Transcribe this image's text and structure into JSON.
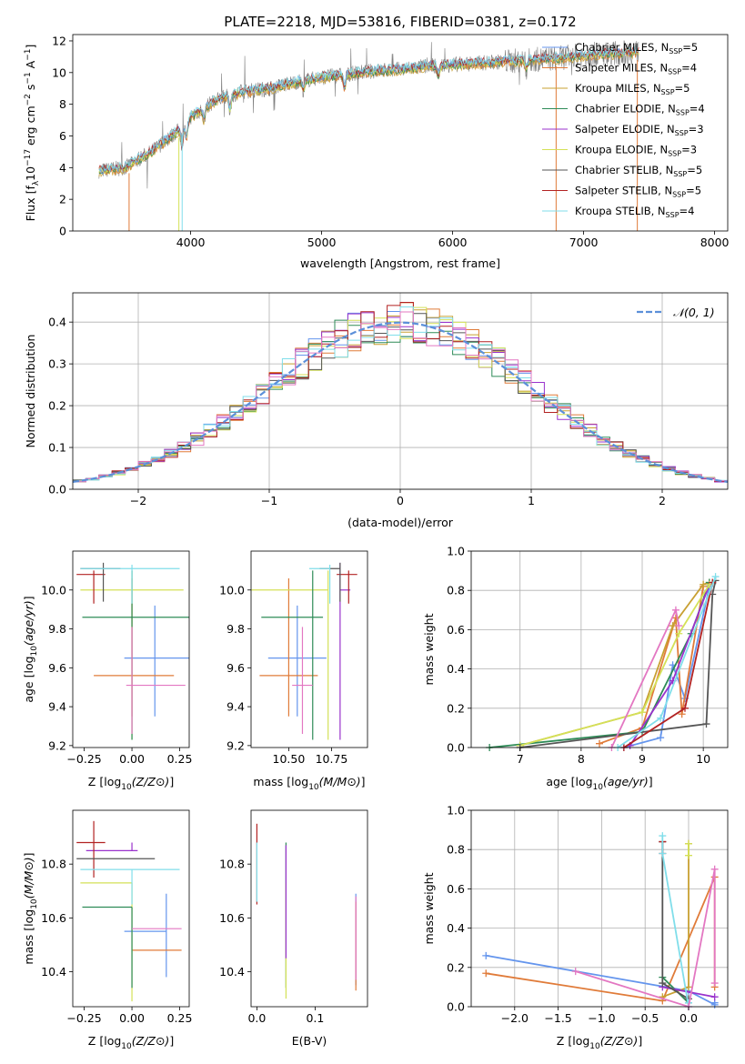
{
  "colors": {
    "chabrier_miles": "#6495ed",
    "salpeter_miles": "#e07b39",
    "kroupa_miles": "#c8a032",
    "chabrier_elodie": "#2e8b57",
    "salpeter_elodie": "#9932cc",
    "kroupa_elodie": "#d4e157",
    "chabrier_stelib": "#555555",
    "salpeter_stelib": "#b22222",
    "kroupa_stelib": "#80deea",
    "pink": "#e377c2",
    "spectrum": "#808080",
    "normal_curve": "#5b8fd9"
  },
  "chart_data": [
    {
      "id": "spectrum",
      "type": "line",
      "title": "PLATE=2218, MJD=53816, FIBERID=0381, z=0.172",
      "xlabel": "wavelength [Angstrom, rest frame]",
      "ylabel_parts": [
        "Flux [f",
        "λ",
        "10",
        "−17",
        " erg cm",
        "−2",
        " s",
        "−1",
        " A",
        "−1",
        "]"
      ],
      "xlim": [
        3100,
        8100
      ],
      "ylim": [
        0,
        12.4
      ],
      "xticks": [
        "4000",
        "5000",
        "6000",
        "7000",
        "8000"
      ],
      "yticks": [
        "0",
        "2",
        "4",
        "6",
        "8",
        "10",
        "12"
      ],
      "spectrum_envelope": {
        "x": [
          3300,
          3500,
          3700,
          3900,
          4000,
          4200,
          4400,
          4600,
          4800,
          5000,
          5200,
          5400,
          5600,
          5800,
          6000,
          6200,
          6400,
          6600,
          6800,
          7000,
          7200,
          7400
        ],
        "y": [
          3.8,
          4.0,
          5.0,
          6.3,
          7.2,
          8.3,
          8.8,
          9.0,
          9.4,
          9.7,
          9.9,
          10.1,
          10.2,
          10.4,
          10.5,
          10.6,
          10.7,
          10.8,
          10.9,
          11.1,
          11.2,
          11.3
        ]
      },
      "legend": [
        {
          "label": "Chabrier MILES, N",
          "sub": "SSP",
          "suffix": "=5",
          "color_key": "chabrier_miles"
        },
        {
          "label": "Salpeter MILES, N",
          "sub": "SSP",
          "suffix": "=4",
          "color_key": "salpeter_miles"
        },
        {
          "label": "Kroupa MILES, N",
          "sub": "SSP",
          "suffix": "=5",
          "color_key": "kroupa_miles"
        },
        {
          "label": "Chabrier ELODIE, N",
          "sub": "SSP",
          "suffix": "=4",
          "color_key": "chabrier_elodie"
        },
        {
          "label": "Salpeter ELODIE, N",
          "sub": "SSP",
          "suffix": "=3",
          "color_key": "salpeter_elodie"
        },
        {
          "label": "Kroupa ELODIE, N",
          "sub": "SSP",
          "suffix": "=3",
          "color_key": "kroupa_elodie"
        },
        {
          "label": "Chabrier STELIB, N",
          "sub": "SSP",
          "suffix": "=5",
          "color_key": "chabrier_stelib"
        },
        {
          "label": "Salpeter STELIB, N",
          "sub": "SSP",
          "suffix": "=5",
          "color_key": "salpeter_stelib"
        },
        {
          "label": "Kroupa STELIB, N",
          "sub": "SSP",
          "suffix": "=4",
          "color_key": "kroupa_stelib"
        }
      ]
    },
    {
      "id": "residuals",
      "type": "bar",
      "xlabel": "(data-model)/error",
      "ylabel": "Normed distribution",
      "xlim": [
        -2.5,
        2.5
      ],
      "ylim": [
        0,
        0.47
      ],
      "xticks": [
        "−2",
        "−1",
        "0",
        "1",
        "2"
      ],
      "yticks": [
        "0.0",
        "0.1",
        "0.2",
        "0.3",
        "0.4"
      ],
      "grid": true,
      "legend": "𝒩(0, 1)",
      "legend_position": "top-right",
      "bin_width": 0.1,
      "distribution": "normal(0,1)"
    },
    {
      "id": "z_age",
      "type": "scatter",
      "xlabel": "Z [log10(Z/Z⊙)]",
      "ylabel": "age  [log10(age/yr)]",
      "xlim": [
        -0.31,
        0.3
      ],
      "ylim": [
        9.19,
        10.2
      ],
      "xticks": [
        "−0.25",
        "0.00",
        "0.25"
      ],
      "yticks": [
        "9.2",
        "9.4",
        "9.6",
        "9.8",
        "10.0"
      ],
      "points": [
        {
          "x": 0.12,
          "y": 9.65,
          "xerr": [
            0.16,
            0.2
          ],
          "yerr": [
            0.3,
            0.27
          ],
          "color_key": "chabrier_miles"
        },
        {
          "x": 0.0,
          "y": 9.56,
          "xerr": [
            0.2,
            0.22
          ],
          "yerr": [
            0.21,
            0.5
          ],
          "color_key": "salpeter_miles"
        },
        {
          "x": 0.0,
          "y": 10.0,
          "xerr": [
            0.27,
            0.27
          ],
          "yerr": [
            0.77,
            0.1
          ],
          "color_key": "kroupa_elodie"
        },
        {
          "x": 0.0,
          "y": 9.86,
          "xerr": [
            0.26,
            0.3
          ],
          "yerr": [
            0.63,
            0.24
          ],
          "color_key": "chabrier_elodie"
        },
        {
          "x": 0.0,
          "y": 9.51,
          "xerr": [
            0.03,
            0.28
          ],
          "yerr": [
            0.25,
            0.3
          ],
          "color_key": "pink"
        },
        {
          "x": -0.2,
          "y": 10.08,
          "xerr": [
            0.09,
            0.06
          ],
          "yerr": [
            0.15,
            0.02
          ],
          "color_key": "salpeter_stelib"
        },
        {
          "x": -0.15,
          "y": 10.11,
          "xerr": [
            0.12,
            0.09
          ],
          "yerr": [
            0.17,
            0.03
          ],
          "color_key": "chabrier_stelib"
        },
        {
          "x": 0.0,
          "y": 10.11,
          "xerr": [
            0.27,
            0.25
          ],
          "yerr": [
            0.18,
            0.02
          ],
          "color_key": "kroupa_stelib"
        }
      ]
    },
    {
      "id": "mass_age",
      "type": "scatter",
      "xlabel": "mass [log10(M/M⊙)]",
      "xlim": [
        10.28,
        10.96
      ],
      "ylim": [
        9.19,
        10.2
      ],
      "xticks": [
        "10.50",
        "10.75"
      ],
      "yticks": [
        "9.2",
        "9.4",
        "9.6",
        "9.8",
        "10.0"
      ],
      "points": [
        {
          "x": 10.55,
          "y": 9.65,
          "xerr": [
            0.17,
            0.17
          ],
          "yerr": [
            0.3,
            0.27
          ],
          "color_key": "chabrier_miles"
        },
        {
          "x": 10.5,
          "y": 9.56,
          "xerr": [
            0.17,
            0.17
          ],
          "yerr": [
            0.21,
            0.5
          ],
          "color_key": "salpeter_miles"
        },
        {
          "x": 10.73,
          "y": 10.0,
          "xerr": [
            0.5,
            0.0
          ],
          "yerr": [
            0.77,
            0.1
          ],
          "color_key": "kroupa_elodie"
        },
        {
          "x": 10.64,
          "y": 9.86,
          "xerr": [
            0.3,
            0.06
          ],
          "yerr": [
            0.63,
            0.24
          ],
          "color_key": "chabrier_elodie"
        },
        {
          "x": 10.8,
          "y": 10.0,
          "xerr": [
            0.0,
            0.06
          ],
          "yerr": [
            0.77,
            0.14
          ],
          "color_key": "salpeter_elodie"
        },
        {
          "x": 10.58,
          "y": 9.51,
          "xerr": [
            0.06,
            0.06
          ],
          "yerr": [
            0.25,
            0.3
          ],
          "color_key": "pink"
        },
        {
          "x": 10.85,
          "y": 10.08,
          "xerr": [
            0.07,
            0.05
          ],
          "yerr": [
            0.15,
            0.02
          ],
          "color_key": "salpeter_stelib"
        },
        {
          "x": 10.8,
          "y": 10.11,
          "xerr": [
            0.12,
            0.0
          ],
          "yerr": [
            0.17,
            0.03
          ],
          "color_key": "chabrier_stelib"
        },
        {
          "x": 10.74,
          "y": 10.11,
          "xerr": [
            0.12,
            0.0
          ],
          "yerr": [
            0.18,
            0.02
          ],
          "color_key": "kroupa_stelib"
        }
      ]
    },
    {
      "id": "age_weight",
      "type": "line",
      "xlabel": "age  [log10(age/yr)]",
      "ylabel": "mass weight",
      "xlim": [
        6.2,
        10.4
      ],
      "ylim": [
        0,
        1
      ],
      "xticks": [
        "7",
        "8",
        "9",
        "10"
      ],
      "yticks": [
        "0.0",
        "0.2",
        "0.4",
        "0.6",
        "0.8",
        "1.0"
      ],
      "grid": true,
      "series": [
        {
          "color_key": "chabrier_miles",
          "x": [
            8.7,
            9.3,
            9.5,
            9.7,
            10.1
          ],
          "y": [
            0.0,
            0.05,
            0.42,
            0.25,
            0.82
          ]
        },
        {
          "color_key": "salpeter_miles",
          "x": [
            8.3,
            9.0,
            9.55,
            9.65,
            10.0
          ],
          "y": [
            0.02,
            0.1,
            0.66,
            0.17,
            0.82
          ]
        },
        {
          "color_key": "kroupa_miles",
          "x": [
            7.0,
            9.0,
            9.5,
            10.0,
            10.1
          ],
          "y": [
            0.01,
            0.18,
            0.62,
            0.83,
            0.84
          ]
        },
        {
          "color_key": "chabrier_elodie",
          "x": [
            6.5,
            9.0,
            9.8,
            10.1
          ],
          "y": [
            0.0,
            0.08,
            0.58,
            0.84
          ]
        },
        {
          "color_key": "salpeter_elodie",
          "x": [
            8.8,
            9.5,
            10.1
          ],
          "y": [
            0.01,
            0.34,
            0.83
          ]
        },
        {
          "color_key": "kroupa_elodie",
          "x": [
            7.0,
            9.0,
            9.6,
            10.1
          ],
          "y": [
            0.01,
            0.18,
            0.58,
            0.83
          ]
        },
        {
          "color_key": "chabrier_stelib",
          "x": [
            7.0,
            10.05,
            10.15,
            10.2
          ],
          "y": [
            0.0,
            0.12,
            0.78,
            0.85
          ]
        },
        {
          "color_key": "salpeter_stelib",
          "x": [
            8.7,
            9.7,
            10.15
          ],
          "y": [
            0.0,
            0.2,
            0.84
          ]
        },
        {
          "color_key": "kroupa_stelib",
          "x": [
            8.6,
            9.3,
            10.2
          ],
          "y": [
            0.0,
            0.15,
            0.87
          ]
        },
        {
          "color_key": "pink",
          "x": [
            8.5,
            9.55,
            9.6
          ],
          "y": [
            0.0,
            0.7,
            0.62
          ]
        }
      ]
    },
    {
      "id": "z_mass",
      "type": "scatter",
      "xlabel": "Z [log10(Z/Z⊙)]",
      "ylabel": "mass [log10(M/M⊙)]",
      "xlim": [
        -0.31,
        0.3
      ],
      "ylim": [
        10.27,
        11.0
      ],
      "xticks": [
        "−0.25",
        "0.00",
        "0.25"
      ],
      "yticks": [
        "10.4",
        "10.6",
        "10.8"
      ],
      "points": [
        {
          "x": 0.18,
          "y": 10.55,
          "xerr": [
            0.22,
            0.0
          ],
          "yerr": [
            0.17,
            0.14
          ],
          "color_key": "chabrier_miles"
        },
        {
          "x": 0.1,
          "y": 10.48,
          "xerr": [
            0.1,
            0.16
          ],
          "yerr": [
            0.0,
            0.0
          ],
          "color_key": "salpeter_miles"
        },
        {
          "x": 0.0,
          "y": 10.73,
          "xerr": [
            0.27,
            0.0
          ],
          "yerr": [
            0.44,
            0.0
          ],
          "color_key": "kroupa_elodie"
        },
        {
          "x": 0.0,
          "y": 10.64,
          "xerr": [
            0.26,
            0.0
          ],
          "yerr": [
            0.3,
            0.0
          ],
          "color_key": "chabrier_elodie"
        },
        {
          "x": 0.0,
          "y": 10.85,
          "xerr": [
            0.24,
            0.03
          ],
          "yerr": [
            0.0,
            0.03
          ],
          "color_key": "salpeter_elodie"
        },
        {
          "x": 0.1,
          "y": 10.56,
          "xerr": [
            0.1,
            0.16
          ],
          "yerr": [
            0.0,
            0.0
          ],
          "color_key": "pink"
        },
        {
          "x": -0.2,
          "y": 10.88,
          "xerr": [
            0.09,
            0.06
          ],
          "yerr": [
            0.13,
            0.08
          ],
          "color_key": "salpeter_stelib"
        },
        {
          "x": -0.15,
          "y": 10.82,
          "xerr": [
            0.14,
            0.27
          ],
          "yerr": [
            0.0,
            0.0
          ],
          "color_key": "chabrier_stelib"
        },
        {
          "x": 0.0,
          "y": 10.78,
          "xerr": [
            0.27,
            0.25
          ],
          "yerr": [
            0.13,
            0.0
          ],
          "color_key": "kroupa_stelib"
        }
      ]
    },
    {
      "id": "ebv_mass",
      "type": "scatter",
      "xlabel": "E(B-V)",
      "xlim": [
        -0.01,
        0.19
      ],
      "ylim": [
        10.27,
        11.0
      ],
      "xticks": [
        "0.0",
        "0.1"
      ],
      "yticks": [
        "10.4",
        "10.6",
        "10.8"
      ],
      "points": [
        {
          "x": 0.0,
          "y": 10.85,
          "yerr": [
            0.2,
            0.1
          ],
          "color_key": "salpeter_stelib"
        },
        {
          "x": 0.0,
          "y": 10.8,
          "yerr": [
            0.14,
            0.08
          ],
          "color_key": "kroupa_stelib"
        },
        {
          "x": 0.05,
          "y": 10.64,
          "yerr": [
            0.3,
            0.24
          ],
          "color_key": "chabrier_elodie"
        },
        {
          "x": 0.05,
          "y": 10.73,
          "yerr": [
            0.43,
            0.0
          ],
          "color_key": "kroupa_elodie"
        },
        {
          "x": 0.05,
          "y": 10.7,
          "yerr": [
            0.25,
            0.17
          ],
          "color_key": "salpeter_elodie"
        },
        {
          "x": 0.17,
          "y": 10.55,
          "yerr": [
            0.2,
            0.14
          ],
          "color_key": "chabrier_miles"
        },
        {
          "x": 0.17,
          "y": 10.5,
          "yerr": [
            0.17,
            0.16
          ],
          "color_key": "salpeter_miles"
        },
        {
          "x": 0.17,
          "y": 10.56,
          "yerr": [
            0.19,
            0.12
          ],
          "color_key": "pink"
        }
      ]
    },
    {
      "id": "z_weight",
      "type": "line",
      "xlabel": "Z [log10(Z/Z⊙)]",
      "ylabel": "mass weight",
      "xlim": [
        -2.5,
        0.45
      ],
      "ylim": [
        0,
        1
      ],
      "xticks": [
        "−2.0",
        "−1.5",
        "−1.0",
        "−0.5",
        "0.0"
      ],
      "yticks": [
        "0.0",
        "0.2",
        "0.4",
        "0.6",
        "0.8",
        "1.0"
      ],
      "grid": true,
      "series": [
        {
          "color_key": "chabrier_miles",
          "x": [
            -2.33,
            0.0,
            0.3,
            0.3
          ],
          "y": [
            0.26,
            0.08,
            0.01,
            0.02
          ]
        },
        {
          "color_key": "salpeter_miles",
          "x": [
            -2.33,
            -0.3,
            0.3,
            0.3
          ],
          "y": [
            0.17,
            0.03,
            0.66,
            0.1
          ]
        },
        {
          "color_key": "kroupa_miles",
          "x": [
            -0.3,
            0.0,
            0.0
          ],
          "y": [
            0.05,
            0.1,
            0.83
          ]
        },
        {
          "color_key": "chabrier_elodie",
          "x": [
            -0.3,
            0.0
          ],
          "y": [
            0.15,
            0.02
          ]
        },
        {
          "color_key": "salpeter_elodie",
          "x": [
            -0.3,
            0.3
          ],
          "y": [
            0.1,
            0.05
          ]
        },
        {
          "color_key": "kroupa_elodie",
          "x": [
            -0.0,
            -0.0
          ],
          "y": [
            0.83,
            0.77
          ]
        },
        {
          "color_key": "chabrier_stelib",
          "x": [
            -0.3,
            -0.3,
            0.0
          ],
          "y": [
            0.84,
            0.12,
            0.04
          ]
        },
        {
          "color_key": "salpeter_stelib",
          "x": [
            -0.3,
            -0.3
          ],
          "y": [
            0.84,
            0.78
          ]
        },
        {
          "color_key": "kroupa_stelib",
          "x": [
            -0.3,
            -0.3,
            0.0,
            0.0
          ],
          "y": [
            0.87,
            0.78,
            0.0,
            0.02
          ]
        },
        {
          "color_key": "pink",
          "x": [
            -1.3,
            0.0,
            0.3,
            0.3
          ],
          "y": [
            0.18,
            0.0,
            0.7,
            0.12
          ]
        }
      ]
    }
  ]
}
